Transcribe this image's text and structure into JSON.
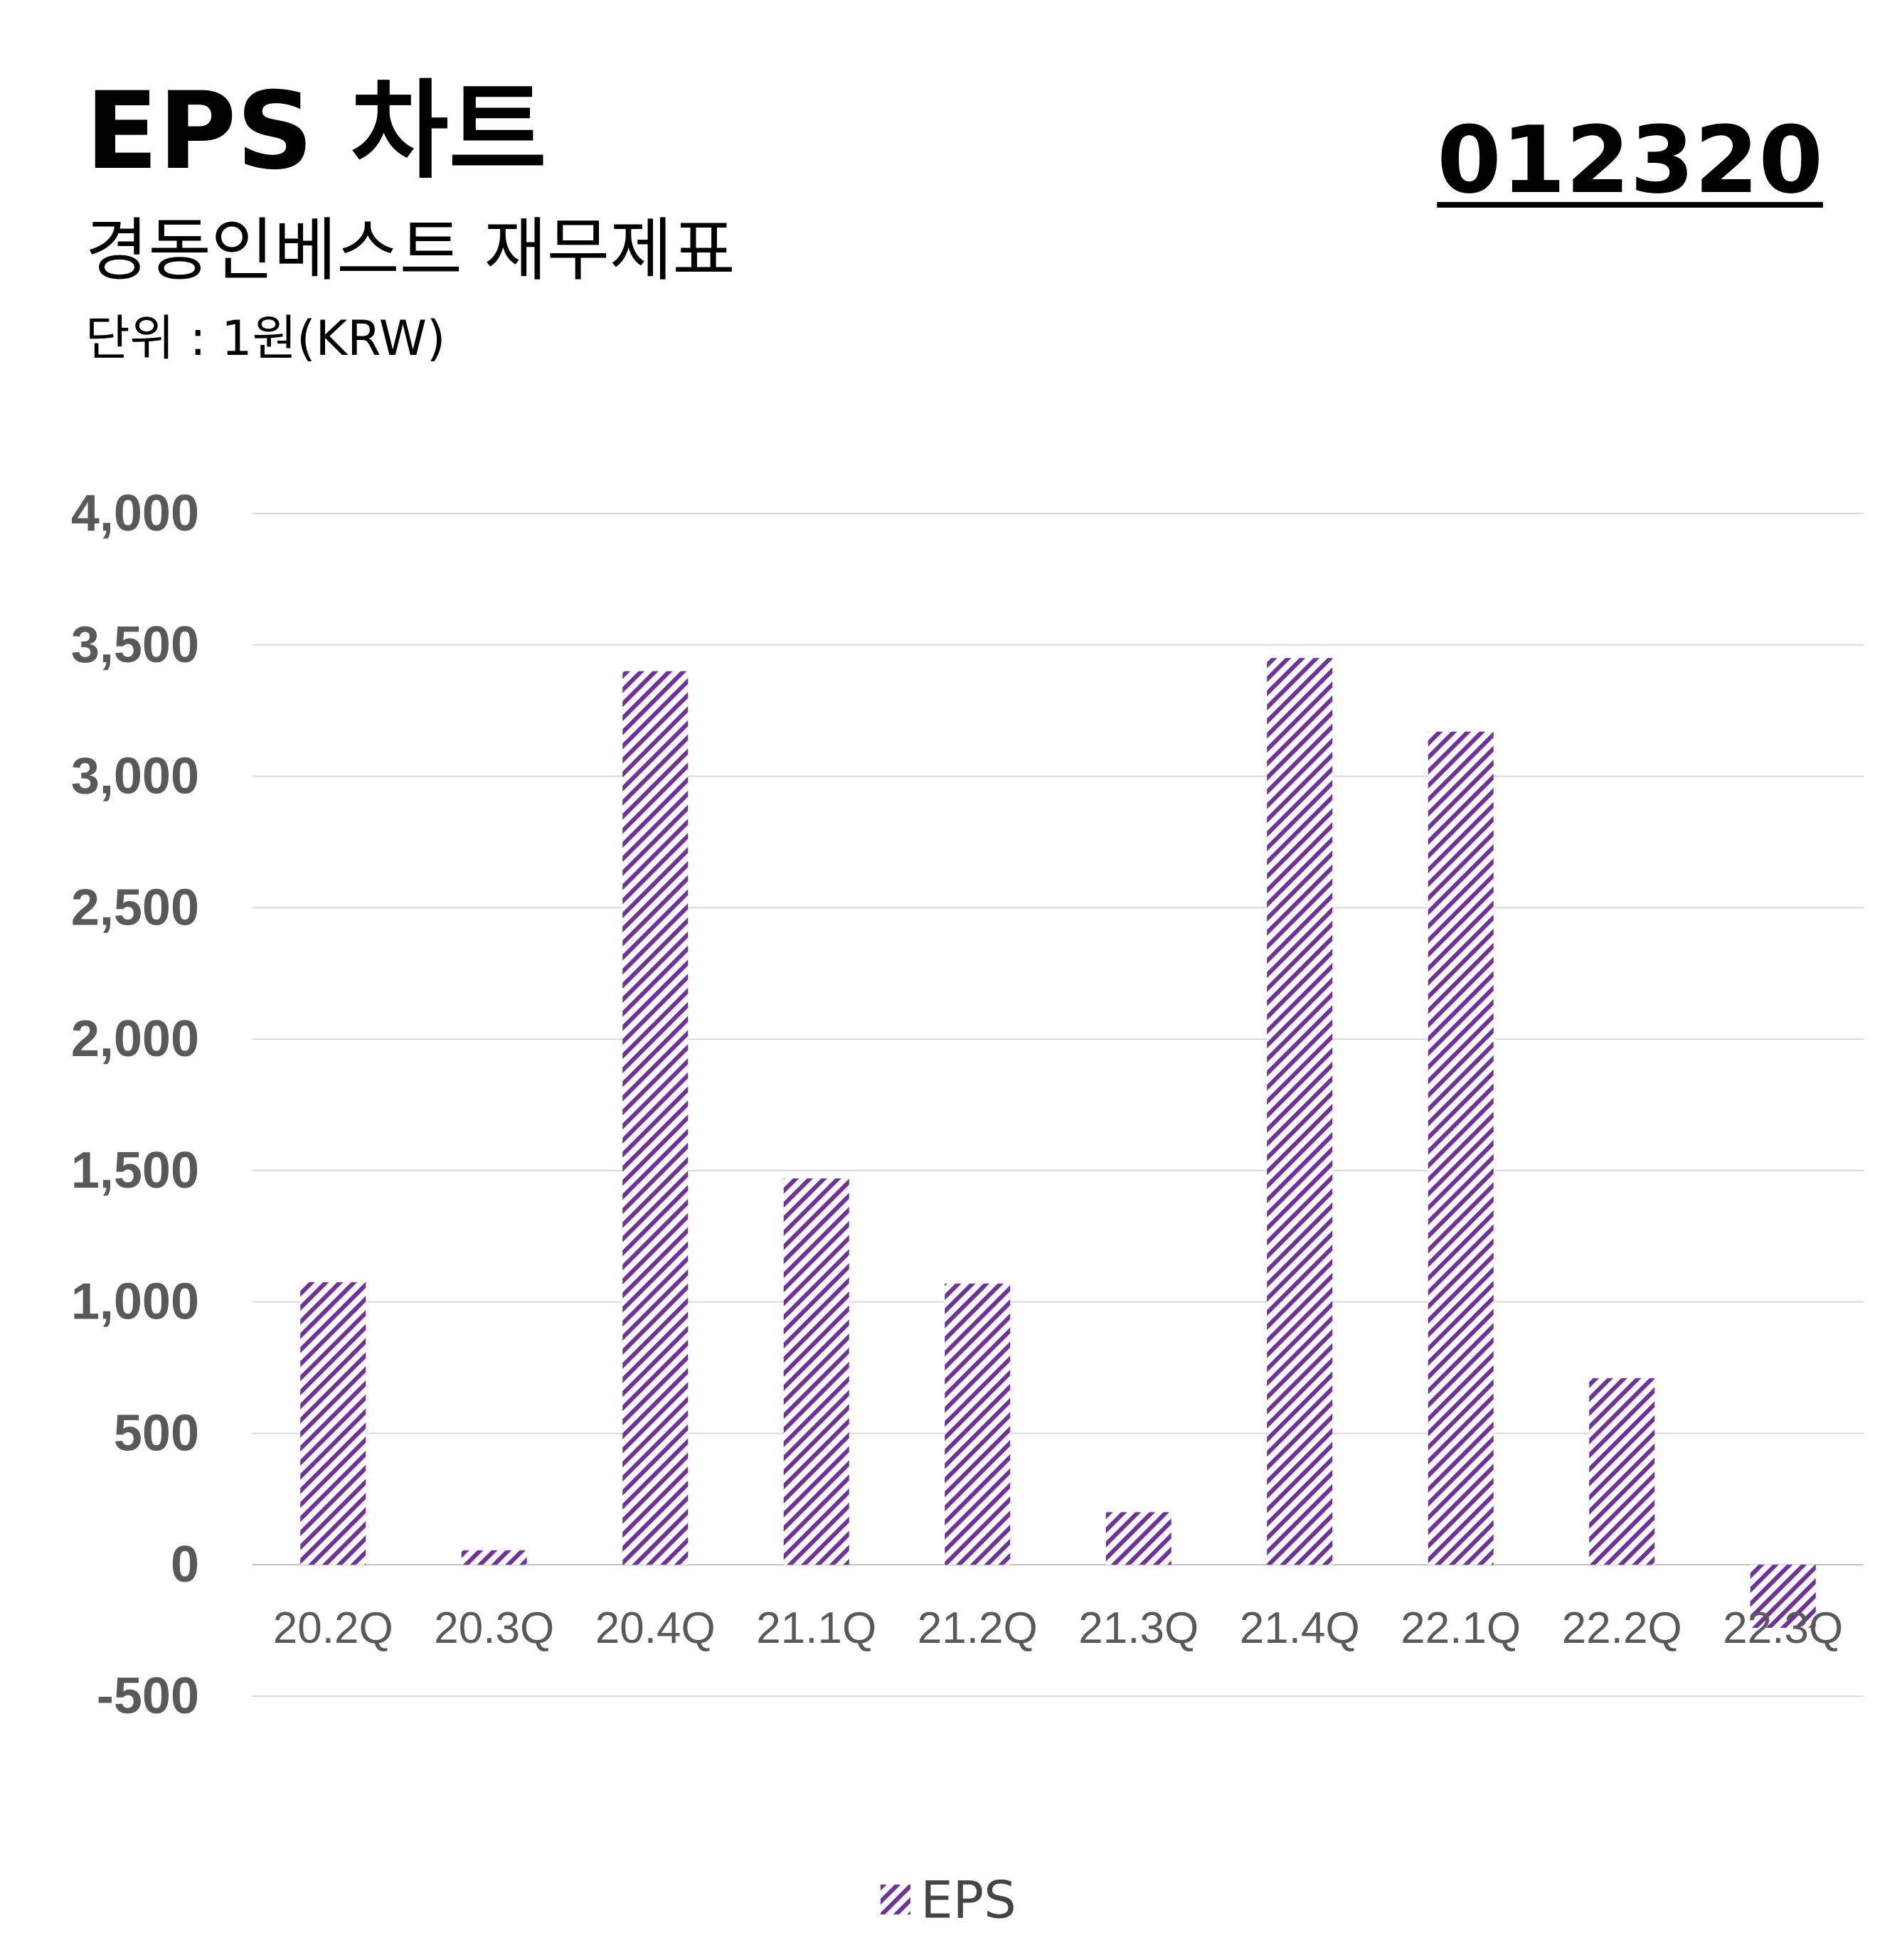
{
  "header": {
    "title": "EPS 차트",
    "ticker": "012320",
    "subtitle": "경동인베스트 재무제표",
    "unit": "단위 : 1원(KRW)"
  },
  "colors": {
    "bar_stripe": "#7030a0",
    "gridline": "#d9d9d9",
    "tick_label": "#595959"
  },
  "chart_data": {
    "type": "bar",
    "title": "EPS 차트",
    "xlabel": "",
    "ylabel": "",
    "categories": [
      "20.2Q",
      "20.3Q",
      "20.4Q",
      "21.1Q",
      "21.2Q",
      "21.3Q",
      "21.4Q",
      "22.1Q",
      "22.2Q",
      "22.3Q"
    ],
    "series": [
      {
        "name": "EPS",
        "values": [
          1075,
          55,
          3400,
          1470,
          1070,
          200,
          3450,
          3170,
          710,
          -240
        ],
        "pattern": "diagonal-stripes"
      }
    ],
    "ylim": [
      -500,
      4000
    ],
    "yticks": [
      4000,
      3500,
      3000,
      2500,
      2000,
      1500,
      1000,
      500,
      0,
      -500
    ],
    "ytick_labels": [
      "4,000",
      "3,500",
      "3,000",
      "2,500",
      "2,000",
      "1,500",
      "1,000",
      "500",
      "0",
      "-500"
    ],
    "grid": true,
    "legend": "bottom-center"
  }
}
